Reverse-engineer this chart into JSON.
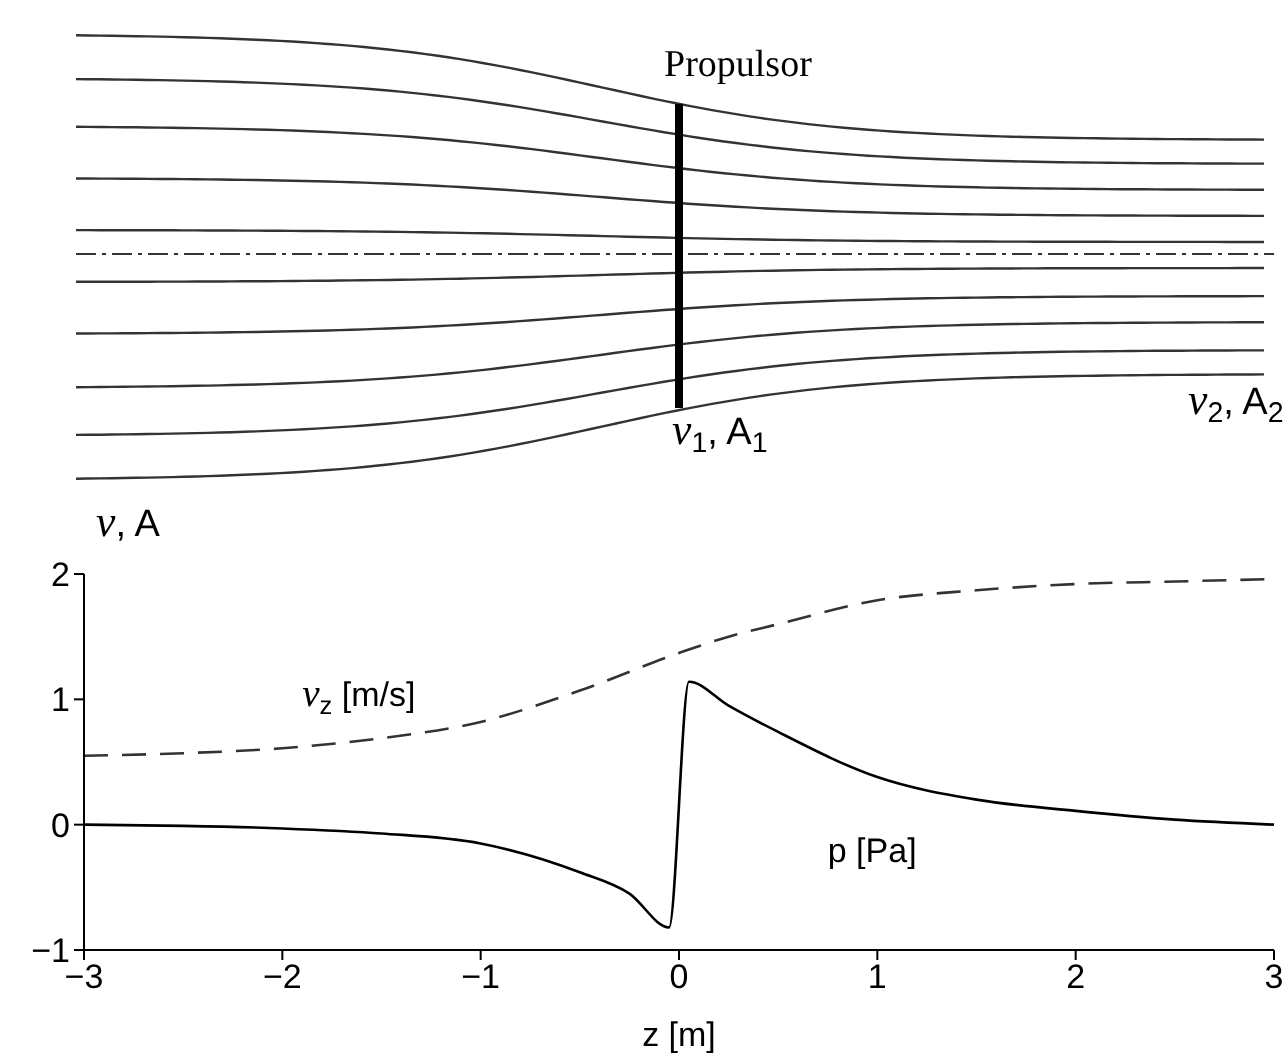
{
  "chart_data": {
    "type": "line",
    "xlabel": "z [m]",
    "xlim": [
      -3,
      3
    ],
    "xticks": [
      -3,
      -2,
      -1,
      0,
      1,
      2,
      3
    ],
    "ylim": [
      -1,
      2
    ],
    "yticks": [
      -1,
      0,
      1,
      2
    ],
    "marker": "none",
    "series": [
      {
        "name": "v$_{z}$ [m/s]",
        "color": "#333333",
        "line_style": "dashed",
        "x": [
          -3,
          -2.5,
          -2,
          -1.5,
          -1,
          -0.5,
          0,
          0.25,
          0.5,
          1,
          1.5,
          2,
          2.5,
          3
        ],
        "values": [
          0.55,
          0.57,
          0.61,
          0.69,
          0.82,
          1.07,
          1.37,
          1.5,
          1.6,
          1.79,
          1.87,
          1.92,
          1.94,
          1.96
        ]
      },
      {
        "name": "p [Pa]",
        "color": "#000000",
        "line_style": "solid",
        "x": [
          -3,
          -2.5,
          -2,
          -1.5,
          -1,
          -0.5,
          -0.25,
          -0.05,
          0.05,
          0.25,
          0.5,
          1,
          1.5,
          2,
          2.5,
          3
        ],
        "values": [
          0,
          -0.01,
          -0.03,
          -0.07,
          -0.15,
          -0.38,
          -0.55,
          -0.82,
          1.14,
          0.95,
          0.74,
          0.38,
          0.2,
          0.11,
          0.04,
          0
        ]
      }
    ],
    "annotations": [
      "Propulsor",
      "v$_{1}$, A$_{1}$",
      "v$_{2}$, A$_{2}$",
      "v, A"
    ]
  }
}
